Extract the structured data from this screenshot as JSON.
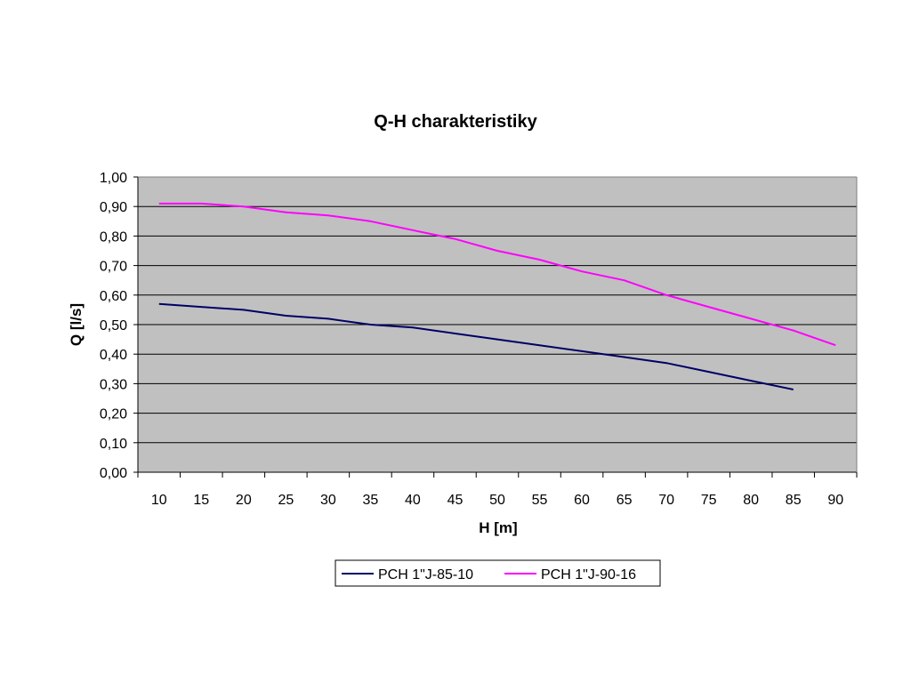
{
  "chart_data": {
    "type": "line",
    "title": "Q-H charakteristiky",
    "xlabel": "H [m]",
    "ylabel": "Q [l/s]",
    "x": [
      10,
      15,
      20,
      25,
      30,
      35,
      40,
      45,
      50,
      55,
      60,
      65,
      70,
      75,
      80,
      85,
      90
    ],
    "x_tick_labels": [
      "10",
      "15",
      "20",
      "25",
      "30",
      "35",
      "40",
      "45",
      "50",
      "55",
      "60",
      "65",
      "70",
      "75",
      "80",
      "85",
      "90"
    ],
    "ylim": [
      0,
      1
    ],
    "y_ticks": [
      0,
      0.1,
      0.2,
      0.3,
      0.4,
      0.5,
      0.6,
      0.7,
      0.8,
      0.9,
      1.0
    ],
    "y_tick_labels": [
      "0,00",
      "0,10",
      "0,20",
      "0,30",
      "0,40",
      "0,50",
      "0,60",
      "0,70",
      "0,80",
      "0,90",
      "1,00"
    ],
    "grid": true,
    "legend_position": "bottom",
    "series": [
      {
        "name": "PCH 1\"J-85-10",
        "color": "#000066",
        "x": [
          10,
          15,
          20,
          25,
          30,
          35,
          40,
          45,
          50,
          55,
          60,
          65,
          70,
          75,
          80,
          85
        ],
        "values": [
          0.57,
          0.56,
          0.55,
          0.53,
          0.52,
          0.5,
          0.49,
          0.47,
          0.45,
          0.43,
          0.41,
          0.39,
          0.37,
          0.34,
          0.31,
          0.28
        ]
      },
      {
        "name": "PCH 1\"J-90-16",
        "color": "#ff00ff",
        "x": [
          10,
          15,
          20,
          25,
          30,
          35,
          40,
          45,
          50,
          55,
          60,
          65,
          70,
          75,
          80,
          85,
          90
        ],
        "values": [
          0.91,
          0.91,
          0.9,
          0.88,
          0.87,
          0.85,
          0.82,
          0.79,
          0.75,
          0.72,
          0.68,
          0.65,
          0.6,
          0.56,
          0.52,
          0.48,
          0.43
        ]
      }
    ],
    "plot_background": "#c0c0c0"
  }
}
